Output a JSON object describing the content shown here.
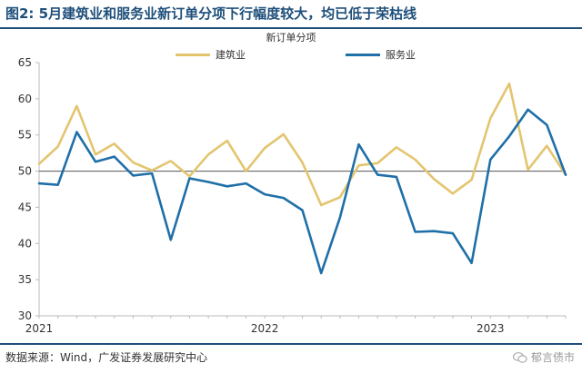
{
  "header": {
    "title": "图2:  5月建筑业和服务业新订单分项下行幅度较大，均已低于荣枯线"
  },
  "chart_data": {
    "type": "line",
    "title": "新订单分项",
    "x": [
      "2021-01",
      "2021-02",
      "2021-03",
      "2021-04",
      "2021-05",
      "2021-06",
      "2021-07",
      "2021-08",
      "2021-09",
      "2021-10",
      "2021-11",
      "2021-12",
      "2022-01",
      "2022-02",
      "2022-03",
      "2022-04",
      "2022-05",
      "2022-06",
      "2022-07",
      "2022-08",
      "2022-09",
      "2022-10",
      "2022-11",
      "2022-12",
      "2023-01",
      "2023-02",
      "2023-03",
      "2023-04",
      "2023-05"
    ],
    "x_tick_labels": [
      "2021",
      "2022",
      "2023"
    ],
    "series": [
      {
        "name": "建筑业",
        "color": "#e3c56f",
        "values": [
          51.0,
          53.4,
          59.0,
          52.3,
          53.8,
          51.2,
          50.1,
          51.4,
          49.3,
          52.3,
          54.2,
          50.0,
          53.2,
          55.1,
          51.2,
          45.3,
          46.4,
          50.8,
          51.1,
          53.3,
          51.6,
          48.9,
          46.9,
          48.8,
          57.3,
          62.1,
          50.2,
          53.5,
          49.5
        ]
      },
      {
        "name": "服务业",
        "color": "#1f6fa8",
        "values": [
          48.3,
          48.1,
          55.4,
          51.3,
          52.0,
          49.4,
          49.7,
          40.5,
          49.0,
          48.5,
          47.9,
          48.3,
          46.8,
          46.3,
          44.6,
          35.9,
          43.6,
          53.7,
          49.5,
          49.2,
          41.6,
          41.7,
          41.4,
          37.3,
          51.6,
          54.8,
          58.5,
          56.4,
          49.5
        ]
      }
    ],
    "ylim": [
      30,
      65
    ],
    "yticks": [
      30,
      35,
      40,
      45,
      50,
      55,
      60,
      65
    ],
    "reference_line": 50,
    "grid": false,
    "legend_placement": "top"
  },
  "footer": {
    "source": "数据来源：Wind，广发证券发展研究中心",
    "watermark": "郁言债市"
  }
}
